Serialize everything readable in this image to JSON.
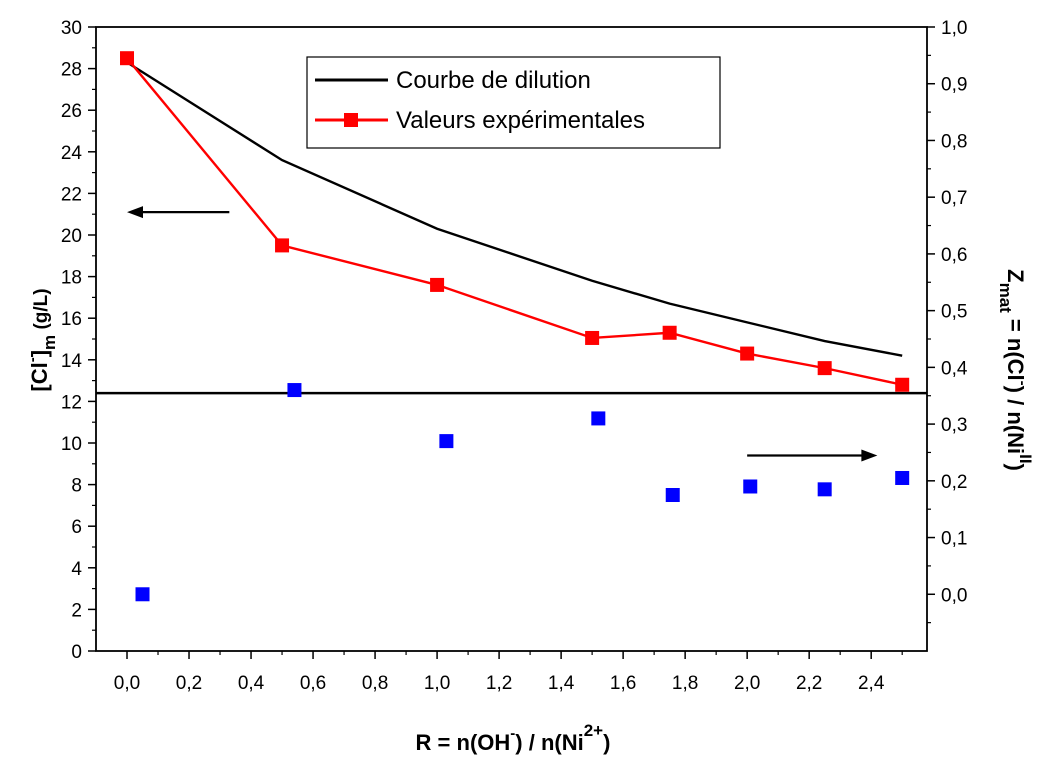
{
  "chart_data": {
    "type": "line",
    "xlabel": {
      "main": "R = n(OH",
      "sup1": "-",
      "mid": ") / n(Ni",
      "sup2": "2+",
      "end": ")"
    },
    "ylabel_left": {
      "main": "[Cl",
      "sup": "-",
      "close": "]",
      "sub": "m",
      "end": " (g/L)"
    },
    "ylabel_right": {
      "main": "Z",
      "sub": "mat",
      "mid": " = n(Cl",
      "sup1": "-",
      "mid2": ") / n(Ni",
      "sup2": "II",
      "end": ")"
    },
    "xlim": [
      -0.1,
      2.58
    ],
    "x_ticks": [
      "0,0",
      "0,2",
      "0,4",
      "0,6",
      "0,8",
      "1,0",
      "1,2",
      "1,4",
      "1,6",
      "1,8",
      "2,0",
      "2,2",
      "2,4"
    ],
    "ylim_left": [
      0,
      30
    ],
    "y_ticks_left": [
      "0",
      "2",
      "4",
      "6",
      "8",
      "10",
      "12",
      "14",
      "16",
      "18",
      "20",
      "22",
      "24",
      "26",
      "28",
      "30"
    ],
    "ylim_right": [
      -0.1,
      1.0
    ],
    "y_ticks_right": [
      "0,0",
      "0,1",
      "0,2",
      "0,3",
      "0,4",
      "0,5",
      "0,6",
      "0,7",
      "0,8",
      "0,9",
      "1,0"
    ],
    "legend": {
      "position": "top-center",
      "entries": [
        "Courbe de dilution",
        "Valeurs expérimentales"
      ]
    },
    "series": [
      {
        "name": "Courbe de dilution",
        "axis": "left",
        "color": "#000000",
        "marker": "none",
        "x": [
          0.0,
          0.5,
          1.0,
          1.5,
          1.75,
          2.0,
          2.25,
          2.5
        ],
        "y": [
          28.3,
          23.6,
          20.3,
          17.8,
          16.7,
          15.8,
          14.9,
          14.2
        ]
      },
      {
        "name": "Valeurs expérimentales",
        "axis": "left",
        "color": "#ff0000",
        "marker": "square",
        "x": [
          0.0,
          0.5,
          1.0,
          1.5,
          1.75,
          2.0,
          2.25,
          2.5
        ],
        "y": [
          28.5,
          19.5,
          17.6,
          15.05,
          15.3,
          14.3,
          13.6,
          12.8
        ]
      },
      {
        "axis": "right",
        "color": "#0000ff",
        "marker": "square",
        "line": false,
        "x": [
          0.05,
          0.54,
          1.03,
          1.52,
          1.76,
          2.01,
          2.25,
          2.5
        ],
        "y": [
          0.0,
          0.36,
          0.27,
          0.31,
          0.175,
          0.19,
          0.185,
          0.205
        ]
      }
    ],
    "divider": {
      "axis": "left",
      "y": 12.4
    },
    "arrows": [
      {
        "direction": "left",
        "axis": "left",
        "x_from": 0.33,
        "x_to": 0.0,
        "y": 21.1
      },
      {
        "direction": "right",
        "axis": "left",
        "x_from": 2.0,
        "x_to": 2.42,
        "y": 9.4
      }
    ]
  }
}
